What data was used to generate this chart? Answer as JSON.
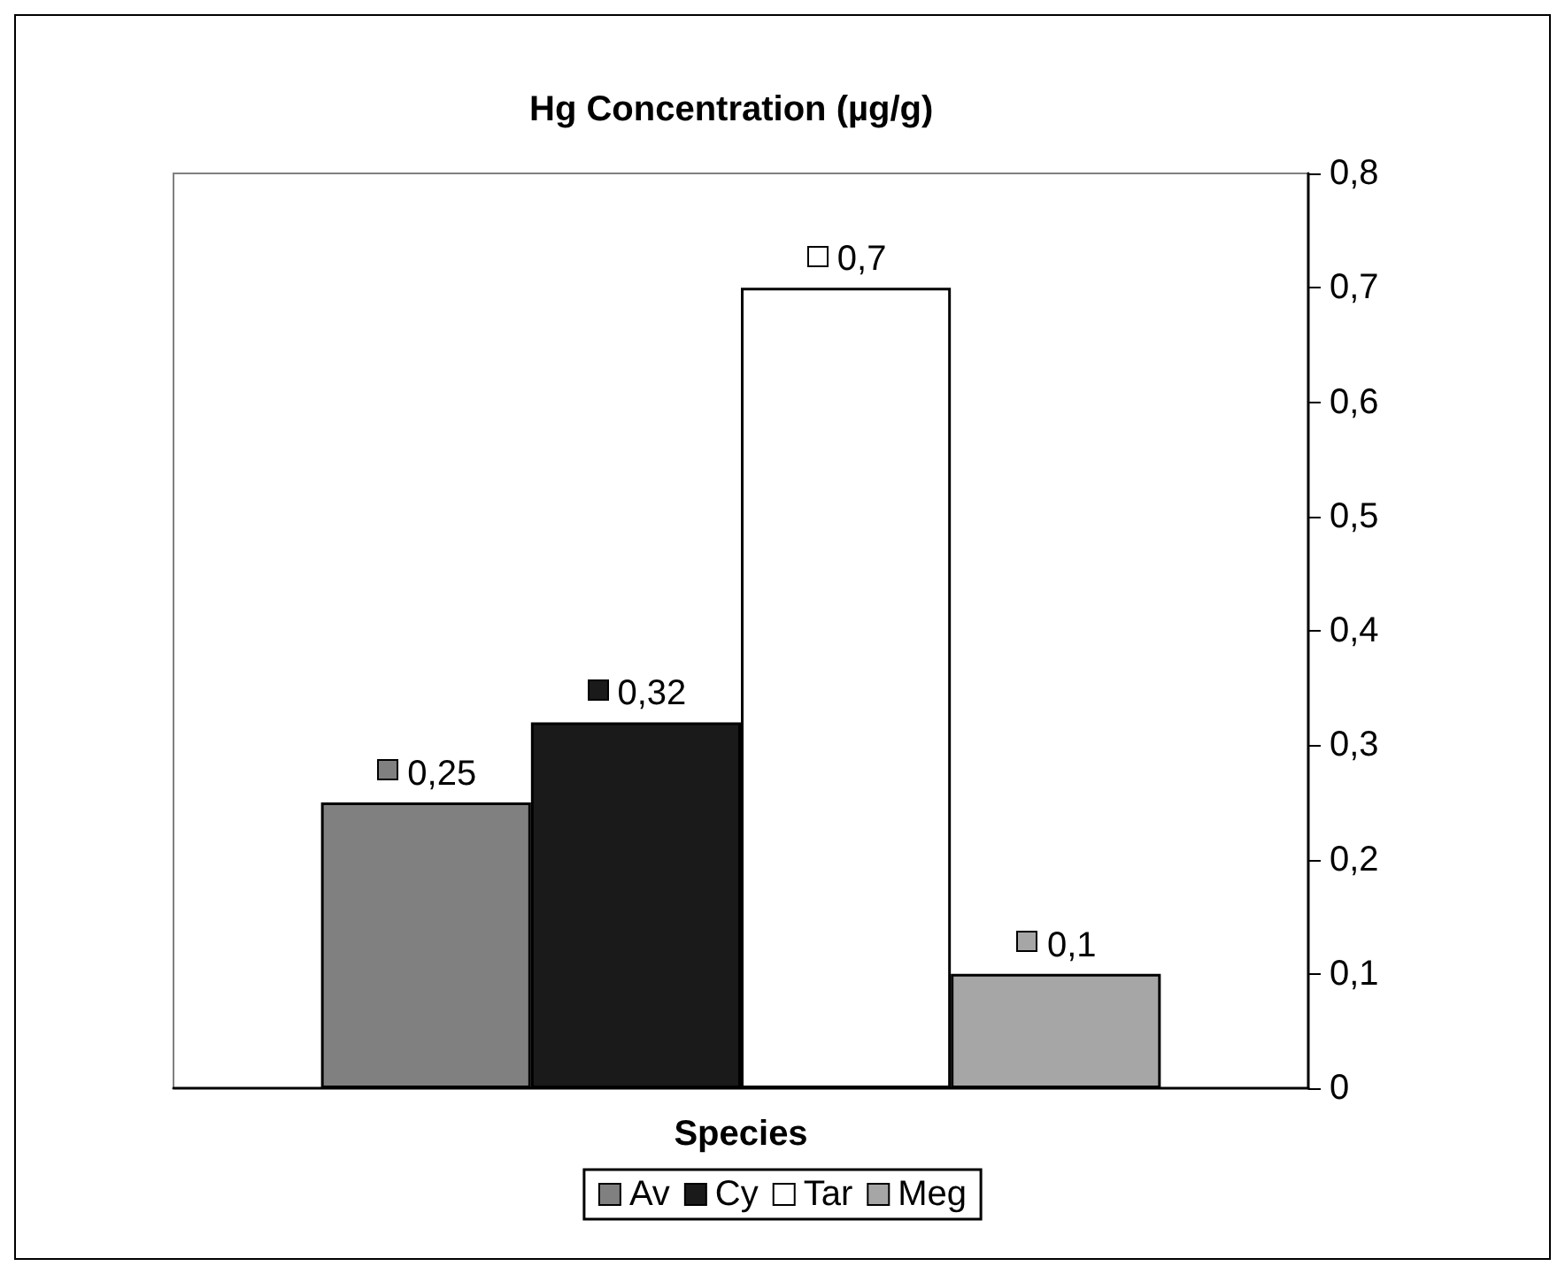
{
  "chart_data": {
    "type": "bar",
    "title": "Hg Concentration (µg/g)",
    "xlabel": "Species",
    "categories": [
      null
    ],
    "series": [
      {
        "name": "Av",
        "color": "#808080",
        "values": [
          0.25
        ],
        "value_labels": [
          "0,25"
        ]
      },
      {
        "name": "Cy",
        "color": "#1a1a1a",
        "values": [
          0.32
        ],
        "value_labels": [
          "0,32"
        ]
      },
      {
        "name": "Tar",
        "color": "#ffffff",
        "values": [
          0.7
        ],
        "value_labels": [
          "0,7"
        ]
      },
      {
        "name": "Meg",
        "color": "#a6a6a6",
        "values": [
          0.1
        ],
        "value_labels": [
          "0,1"
        ]
      }
    ],
    "ylim": [
      0,
      0.8
    ],
    "yticks": [
      0,
      {
        "value": 0.1,
        "label": "0,1"
      },
      {
        "value": 0.2,
        "label": "0,2"
      },
      {
        "value": 0.3,
        "label": "0,3"
      },
      {
        "value": 0.4,
        "label": "0,4"
      },
      {
        "value": 0.5,
        "label": "0,5"
      },
      {
        "value": 0.6,
        "label": "0,6"
      },
      {
        "value": 0.7,
        "label": "0,7"
      },
      {
        "value": 0.8,
        "label": "0,8"
      }
    ],
    "grid": false,
    "legend": "bottom"
  }
}
